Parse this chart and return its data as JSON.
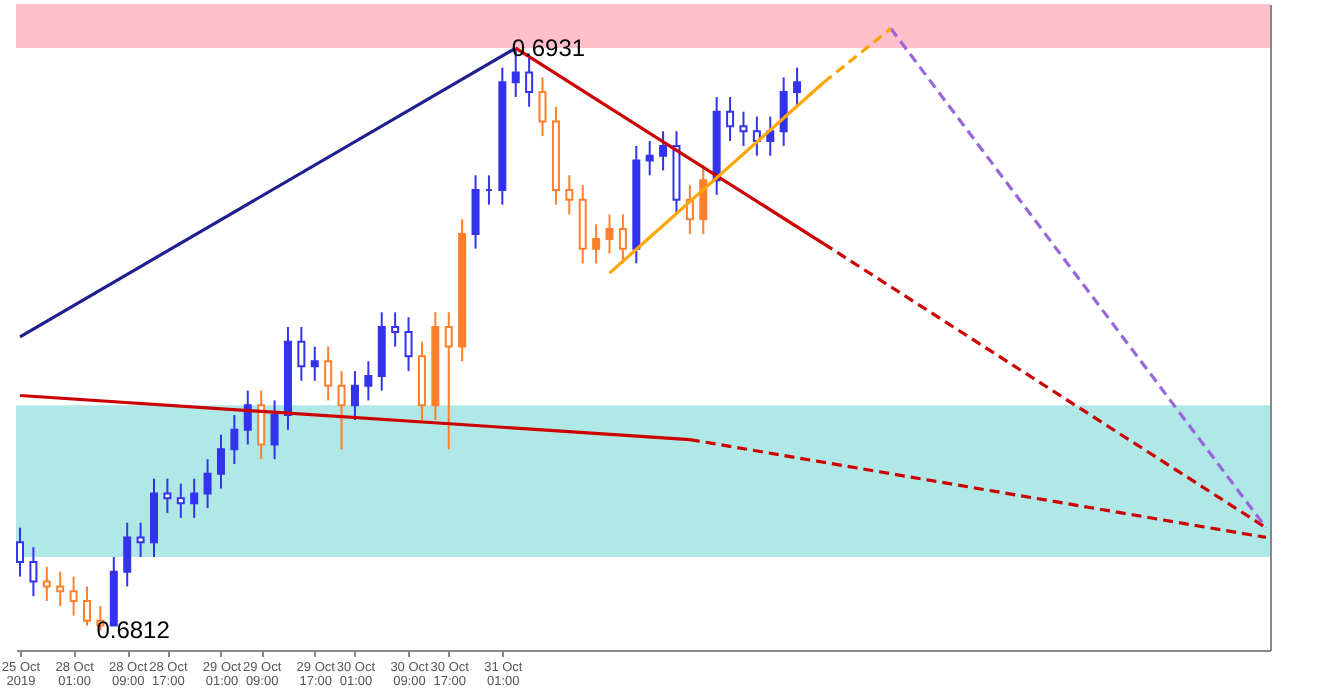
{
  "chart_data": {
    "type": "candlestick",
    "categories": [
      "25 Oct 2019",
      null,
      null,
      null,
      "28 Oct 01:00",
      null,
      null,
      null,
      "28 Oct 09:00",
      null,
      null,
      "28 Oct 17:00",
      null,
      null,
      null,
      "29 Oct 01:00",
      null,
      null,
      "29 Oct 09:00",
      null,
      null,
      null,
      "29 Oct 17:00",
      null,
      null,
      "30 Oct 01:00",
      null,
      null,
      null,
      "30 Oct 09:00",
      null,
      null,
      "30 Oct 17:00",
      null,
      null,
      null,
      "31 Oct 01:00",
      null,
      null,
      null,
      null,
      null,
      null,
      null,
      null,
      null,
      null,
      null,
      null,
      null,
      null,
      null,
      null,
      null,
      null,
      null,
      null,
      null,
      null,
      null,
      null,
      null,
      null,
      null,
      null,
      null,
      null,
      null,
      null,
      null,
      null,
      null,
      null,
      null,
      null,
      null,
      null,
      null,
      null,
      null,
      null,
      null,
      null,
      null,
      null,
      null,
      null,
      null,
      null,
      null,
      null,
      null,
      null,
      null
    ],
    "ohlc": [
      [
        0.683,
        0.6833,
        0.6823,
        0.6826
      ],
      [
        0.6826,
        0.6829,
        0.6819,
        0.6822
      ],
      [
        0.6822,
        0.6825,
        0.6818,
        0.6821
      ],
      [
        0.6821,
        0.6824,
        0.6817,
        0.682
      ],
      [
        0.682,
        0.6823,
        0.6815,
        0.6818
      ],
      [
        0.6818,
        0.6821,
        0.6813,
        0.6814
      ],
      [
        0.6814,
        0.6817,
        0.6812,
        0.6813
      ],
      [
        0.6813,
        0.6827,
        0.6813,
        0.6824
      ],
      [
        0.6824,
        0.6834,
        0.6821,
        0.6831
      ],
      [
        0.6831,
        0.6834,
        0.6827,
        0.683
      ],
      [
        0.683,
        0.6843,
        0.6827,
        0.684
      ],
      [
        0.684,
        0.6843,
        0.6836,
        0.6839
      ],
      [
        0.6839,
        0.6842,
        0.6835,
        0.6838
      ],
      [
        0.6838,
        0.6843,
        0.6835,
        0.684
      ],
      [
        0.684,
        0.6847,
        0.6837,
        0.6844
      ],
      [
        0.6844,
        0.6852,
        0.6841,
        0.6849
      ],
      [
        0.6849,
        0.6856,
        0.6846,
        0.6853
      ],
      [
        0.6853,
        0.6861,
        0.685,
        0.6858
      ],
      [
        0.6858,
        0.6861,
        0.6847,
        0.685
      ],
      [
        0.685,
        0.6859,
        0.6847,
        0.6856
      ],
      [
        0.6856,
        0.6874,
        0.6853,
        0.6871
      ],
      [
        0.6871,
        0.6874,
        0.6863,
        0.6866
      ],
      [
        0.6866,
        0.687,
        0.6863,
        0.6867
      ],
      [
        0.6867,
        0.687,
        0.6859,
        0.6862
      ],
      [
        0.6862,
        0.6865,
        0.6849,
        0.6858
      ],
      [
        0.6858,
        0.6865,
        0.6855,
        0.6862
      ],
      [
        0.6862,
        0.6867,
        0.6859,
        0.6864
      ],
      [
        0.6864,
        0.6877,
        0.6861,
        0.6874
      ],
      [
        0.6874,
        0.6877,
        0.687,
        0.6873
      ],
      [
        0.6873,
        0.6876,
        0.6865,
        0.6868
      ],
      [
        0.6868,
        0.6871,
        0.6855,
        0.6858
      ],
      [
        0.6858,
        0.6877,
        0.6855,
        0.6874
      ],
      [
        0.6874,
        0.6877,
        0.6849,
        0.687
      ],
      [
        0.687,
        0.6896,
        0.6867,
        0.6893
      ],
      [
        0.6893,
        0.6905,
        0.689,
        0.6902
      ],
      [
        0.6902,
        0.6905,
        0.6899,
        0.6902
      ],
      [
        0.6902,
        0.6927,
        0.6899,
        0.6924
      ],
      [
        0.6924,
        0.6931,
        0.6921,
        0.6926
      ],
      [
        0.6926,
        0.6929,
        0.6919,
        0.6922
      ],
      [
        0.6922,
        0.6925,
        0.6913,
        0.6916
      ],
      [
        0.6916,
        0.6919,
        0.6899,
        0.6902
      ],
      [
        0.6902,
        0.6905,
        0.6897,
        0.69
      ],
      [
        0.69,
        0.6903,
        0.6887,
        0.689
      ],
      [
        0.689,
        0.6895,
        0.6887,
        0.6892
      ],
      [
        0.6892,
        0.6897,
        0.6889,
        0.6894
      ],
      [
        0.6894,
        0.6897,
        0.6887,
        0.689
      ],
      [
        0.689,
        0.6911,
        0.6887,
        0.6908
      ],
      [
        0.6908,
        0.6912,
        0.6905,
        0.6909
      ],
      [
        0.6909,
        0.6914,
        0.6906,
        0.6911
      ],
      [
        0.6911,
        0.6914,
        0.6897,
        0.69
      ],
      [
        0.69,
        0.6903,
        0.6893,
        0.6896
      ],
      [
        0.6896,
        0.6907,
        0.6893,
        0.6904
      ],
      [
        0.6904,
        0.6921,
        0.6901,
        0.6918
      ],
      [
        0.6918,
        0.6921,
        0.6912,
        0.6915
      ],
      [
        0.6915,
        0.6918,
        0.6911,
        0.6914
      ],
      [
        0.6914,
        0.6917,
        0.6909,
        0.6912
      ],
      [
        0.6912,
        0.6917,
        0.6909,
        0.6914
      ],
      [
        0.6914,
        0.6925,
        0.6911,
        0.6922
      ],
      [
        0.6922,
        0.6927,
        0.6919,
        0.6924
      ],
      null,
      null,
      null,
      null,
      null,
      null,
      null,
      null,
      null,
      null,
      null,
      null,
      null,
      null,
      null,
      null,
      null,
      null,
      null,
      null,
      null,
      null,
      null,
      null,
      null,
      null,
      null,
      null,
      null,
      null,
      null,
      null,
      null,
      null,
      null
    ],
    "colors": [
      "#3333ee",
      "#3333ee",
      "#ff7f2a",
      "#ff7f2a",
      "#ff7f2a",
      "#ff7f2a",
      "#ff7f2a",
      "#3333ee",
      "#3333ee",
      "#3333ee",
      "#3333ee",
      "#3333ee",
      "#3333ee",
      "#3333ee",
      "#3333ee",
      "#3333ee",
      "#3333ee",
      "#3333ee",
      "#ff7f2a",
      "#3333ee",
      "#3333ee",
      "#3333ee",
      "#3333ee",
      "#ff7f2a",
      "#ff7f2a",
      "#3333ee",
      "#3333ee",
      "#3333ee",
      "#3333ee",
      "#3333ee",
      "#ff7f2a",
      "#ff7f2a",
      "#ff7f2a",
      "#ff7f2a",
      "#3333ee",
      "#3333ee",
      "#3333ee",
      "#3333ee",
      "#3333ee",
      "#ff7f2a",
      "#ff7f2a",
      "#ff7f2a",
      "#ff7f2a",
      "#ff7f2a",
      "#ff7f2a",
      "#ff7f2a",
      "#3333ee",
      "#3333ee",
      "#3333ee",
      "#3333ee",
      "#ff7f2a",
      "#ff7f2a",
      "#3333ee",
      "#3333ee",
      "#3333ee",
      "#3333ee",
      "#3333ee",
      "#3333ee",
      "#3333ee",
      null,
      null,
      null,
      null,
      null,
      null,
      null,
      null,
      null,
      null,
      null,
      null,
      null,
      null,
      null,
      null,
      null,
      null,
      null,
      null,
      null,
      null,
      null,
      null,
      null,
      null,
      null,
      null,
      null,
      null,
      null,
      null,
      null,
      null,
      null
    ],
    "series": [
      {
        "type": "line",
        "color": "#1f1f8f",
        "line_style": "solid",
        "values": [
          0.6872,
          null,
          null,
          null,
          null,
          null,
          null,
          null,
          null,
          null,
          null,
          null,
          null,
          null,
          null,
          null,
          null,
          null,
          null,
          null,
          null,
          null,
          null,
          null,
          null,
          null,
          null,
          null,
          null,
          null,
          null,
          null,
          null,
          null,
          null,
          null,
          null,
          0.6931,
          null,
          null,
          null,
          null,
          null,
          null,
          null,
          null,
          null,
          null,
          null,
          null,
          null,
          null,
          null,
          null,
          null,
          null,
          null,
          null,
          null,
          null,
          null,
          null,
          null,
          null,
          null,
          null,
          null,
          null,
          null,
          null,
          null,
          null,
          null,
          null,
          null,
          null,
          null,
          null,
          null,
          null,
          null,
          null,
          null,
          null,
          null,
          null,
          null,
          null,
          null,
          null,
          null,
          null,
          null,
          null
        ]
      },
      {
        "type": "line",
        "color": "#cc0000",
        "line_style": "solid",
        "values": [
          null,
          null,
          null,
          null,
          null,
          null,
          null,
          null,
          null,
          null,
          null,
          null,
          null,
          null,
          null,
          null,
          null,
          null,
          null,
          null,
          null,
          null,
          null,
          null,
          null,
          null,
          null,
          null,
          null,
          null,
          null,
          null,
          null,
          null,
          null,
          null,
          null,
          0.6931,
          null,
          null,
          null,
          null,
          null,
          null,
          null,
          null,
          null,
          null,
          null,
          null,
          null,
          null,
          null,
          null,
          null,
          null,
          null,
          null,
          null,
          null,
          0.6891,
          null,
          null,
          null,
          null,
          null,
          null,
          null,
          null,
          null,
          null,
          null,
          null,
          null,
          null,
          null,
          null,
          null,
          null,
          null,
          null,
          null,
          null,
          null,
          null,
          null,
          null,
          null,
          null,
          null,
          null,
          null,
          null,
          null
        ]
      },
      {
        "type": "line",
        "color": "#cc0000",
        "line_style": "dashed",
        "values": [
          null,
          null,
          null,
          null,
          null,
          null,
          null,
          null,
          null,
          null,
          null,
          null,
          null,
          null,
          null,
          null,
          null,
          null,
          null,
          null,
          null,
          null,
          null,
          null,
          null,
          null,
          null,
          null,
          null,
          null,
          null,
          null,
          null,
          null,
          null,
          null,
          null,
          null,
          null,
          null,
          null,
          null,
          null,
          null,
          null,
          null,
          null,
          null,
          null,
          null,
          null,
          null,
          null,
          null,
          null,
          null,
          null,
          null,
          null,
          null,
          0.6891,
          null,
          null,
          null,
          null,
          null,
          null,
          null,
          null,
          null,
          null,
          null,
          null,
          null,
          null,
          null,
          null,
          null,
          null,
          null,
          null,
          null,
          null,
          null,
          null,
          null,
          null,
          null,
          null,
          null,
          null,
          null,
          null,
          0.6833
        ]
      },
      {
        "type": "line",
        "color": "#cc0000",
        "line_style": "solid",
        "values": [
          0.686,
          null,
          null,
          null,
          null,
          null,
          null,
          null,
          null,
          null,
          null,
          null,
          null,
          null,
          null,
          null,
          null,
          null,
          null,
          null,
          null,
          null,
          null,
          null,
          null,
          null,
          null,
          null,
          null,
          null,
          null,
          null,
          null,
          null,
          null,
          null,
          null,
          null,
          null,
          null,
          null,
          null,
          null,
          null,
          null,
          null,
          null,
          null,
          null,
          null,
          0.6851,
          null,
          null,
          null,
          null,
          null,
          null,
          null,
          null,
          null,
          null,
          null,
          null,
          null,
          null,
          null,
          null,
          null,
          null,
          null,
          null,
          null,
          null,
          null,
          null,
          null,
          null,
          null,
          null,
          null,
          null,
          null,
          null,
          null,
          null,
          null,
          null,
          null,
          null,
          null,
          null,
          null,
          null,
          null
        ]
      },
      {
        "type": "line",
        "color": "#cc0000",
        "line_style": "dashed",
        "values": [
          null,
          null,
          null,
          null,
          null,
          null,
          null,
          null,
          null,
          null,
          null,
          null,
          null,
          null,
          null,
          null,
          null,
          null,
          null,
          null,
          null,
          null,
          null,
          null,
          null,
          null,
          null,
          null,
          null,
          null,
          null,
          null,
          null,
          null,
          null,
          null,
          null,
          null,
          null,
          null,
          null,
          null,
          null,
          null,
          null,
          null,
          null,
          null,
          null,
          null,
          0.6851,
          null,
          null,
          null,
          null,
          null,
          null,
          null,
          null,
          null,
          null,
          null,
          null,
          null,
          null,
          null,
          null,
          null,
          null,
          null,
          null,
          null,
          null,
          null,
          null,
          null,
          null,
          null,
          null,
          null,
          null,
          null,
          null,
          null,
          null,
          null,
          null,
          null,
          null,
          null,
          null,
          null,
          null,
          0.6831
        ]
      },
      {
        "type": "line",
        "color": "#9966dd",
        "line_style": "dashed",
        "values": [
          null,
          null,
          null,
          null,
          null,
          null,
          null,
          null,
          null,
          null,
          null,
          null,
          null,
          null,
          null,
          null,
          null,
          null,
          null,
          null,
          null,
          null,
          null,
          null,
          null,
          null,
          null,
          null,
          null,
          null,
          null,
          null,
          null,
          null,
          null,
          null,
          null,
          null,
          null,
          null,
          null,
          null,
          null,
          null,
          null,
          null,
          null,
          null,
          null,
          null,
          null,
          null,
          null,
          null,
          null,
          null,
          null,
          null,
          null,
          null,
          null,
          null,
          null,
          null,
          null,
          0.6935,
          null,
          null,
          null,
          null,
          null,
          null,
          null,
          null,
          null,
          null,
          null,
          null,
          null,
          null,
          null,
          null,
          null,
          null,
          null,
          null,
          null,
          null,
          null,
          null,
          null,
          null,
          null,
          0.6833
        ]
      },
      {
        "type": "line",
        "color": "#ffa500",
        "line_style": "solid",
        "values": [
          null,
          null,
          null,
          null,
          null,
          null,
          null,
          null,
          null,
          null,
          null,
          null,
          null,
          null,
          null,
          null,
          null,
          null,
          null,
          null,
          null,
          null,
          null,
          null,
          null,
          null,
          null,
          null,
          null,
          null,
          null,
          null,
          null,
          null,
          null,
          null,
          null,
          null,
          null,
          null,
          null,
          null,
          null,
          null,
          0.6885,
          null,
          null,
          null,
          null,
          null,
          null,
          null,
          null,
          null,
          null,
          null,
          null,
          null,
          null,
          null,
          0.6924,
          null,
          null,
          null,
          null,
          null,
          null,
          null,
          null,
          null,
          null,
          null,
          null,
          null,
          null,
          null,
          null,
          null,
          null,
          null,
          null,
          null,
          null,
          null,
          null,
          null,
          null,
          null,
          null,
          null,
          null,
          null,
          null,
          null
        ]
      },
      {
        "type": "line",
        "color": "#ffa500",
        "line_style": "dashed",
        "values": [
          null,
          null,
          null,
          null,
          null,
          null,
          null,
          null,
          null,
          null,
          null,
          null,
          null,
          null,
          null,
          null,
          null,
          null,
          null,
          null,
          null,
          null,
          null,
          null,
          null,
          null,
          null,
          null,
          null,
          null,
          null,
          null,
          null,
          null,
          null,
          null,
          null,
          null,
          null,
          null,
          null,
          null,
          null,
          null,
          null,
          null,
          null,
          null,
          null,
          null,
          null,
          null,
          null,
          null,
          null,
          null,
          null,
          null,
          null,
          null,
          0.6924,
          null,
          null,
          null,
          null,
          0.6935,
          null,
          null,
          null,
          null,
          null,
          null,
          null,
          null,
          null,
          null,
          null,
          null,
          null,
          null,
          null,
          null,
          null,
          null,
          null,
          null,
          null,
          null,
          null,
          null,
          null,
          null,
          null,
          null
        ]
      }
    ],
    "bands": [
      {
        "axis": "y",
        "from": 0.6931,
        "to": 0.694,
        "color": "#ffc0cb"
      },
      {
        "axis": "y",
        "from": 0.6827,
        "to": 0.6858,
        "color": "#b0e8e8"
      }
    ],
    "annotations": [
      {
        "text": "0.6931",
        "y": 0.6931
      },
      "0.6812"
    ],
    "ylim": [
      0.6808,
      0.694
    ],
    "tick_labels": "x"
  }
}
